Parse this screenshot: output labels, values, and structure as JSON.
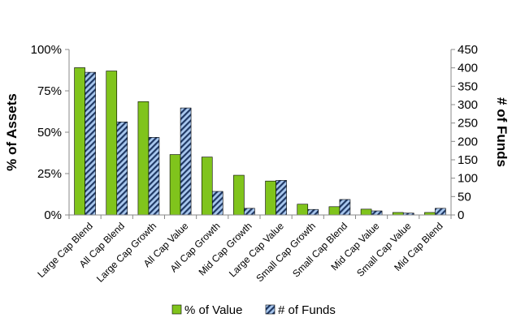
{
  "chart_data": {
    "type": "bar",
    "categories": [
      "Large Cap Blend",
      "All Cap Blend",
      "Large Cap Growth",
      "All Cap Value",
      "All Cap Growth",
      "Mid Cap Growth",
      "Large Cap Value",
      "Small Cap Growth",
      "Small Cap Blend",
      "Mid Cap Value",
      "Small Cap Value",
      "Mid Cap Blend"
    ],
    "series": [
      {
        "name": "% of Value",
        "axis": "left",
        "color": "#80c41c",
        "pattern": "solid",
        "values": [
          89,
          87,
          68.5,
          36.5,
          35,
          24,
          20.5,
          6.5,
          5,
          3.5,
          1.5,
          1.5
        ]
      },
      {
        "name": "# of Funds",
        "axis": "right",
        "color": "#a9c8ef",
        "pattern": "diagonal-hatch-navy",
        "values": [
          388,
          253,
          211,
          291,
          64,
          18,
          94,
          15,
          42,
          11,
          5,
          18
        ]
      }
    ],
    "ylabel": "% of Assets",
    "ylabel_right": "# of Funds",
    "ylim": [
      0,
      100
    ],
    "ylim_right": [
      0,
      450
    ],
    "yticks": [
      "0%",
      "25%",
      "50%",
      "75%",
      "100%"
    ],
    "yticks_right": [
      "0",
      "50",
      "100",
      "150",
      "200",
      "250",
      "300",
      "350",
      "400",
      "450"
    ],
    "grid": false,
    "legend_position": "bottom"
  }
}
